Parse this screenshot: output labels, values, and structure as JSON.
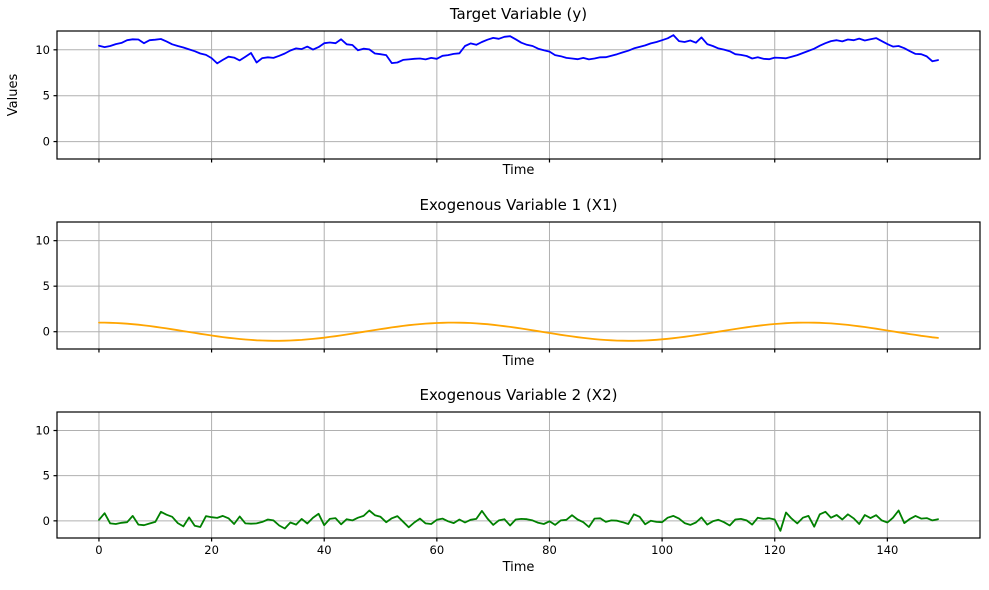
{
  "figure": {
    "background": "#ffffff",
    "grid_color": "#b0b0b0",
    "spine_color": "#000000",
    "text_color": "#000000"
  },
  "chart_data": [
    {
      "type": "line",
      "title": "Target Variable (y)",
      "xlabel": "Time",
      "ylabel": "Values",
      "color": "#0000ff",
      "grid": true,
      "legend": "none",
      "xlim": [
        -7.45,
        156.45
      ],
      "ylim": [
        -1.9,
        12.05
      ],
      "xticks": [
        0,
        20,
        40,
        60,
        80,
        100,
        120,
        140
      ],
      "show_xtick_labels": false,
      "yticks": [
        0,
        5,
        10
      ],
      "x_start": 0,
      "x_step": 1,
      "values": [
        10.45,
        10.3,
        10.42,
        10.62,
        10.75,
        11.05,
        11.15,
        11.12,
        10.72,
        11.05,
        11.1,
        11.18,
        10.92,
        10.6,
        10.42,
        10.25,
        10.05,
        9.85,
        9.6,
        9.45,
        9.1,
        8.52,
        8.9,
        9.25,
        9.15,
        8.85,
        9.25,
        9.65,
        8.62,
        9.1,
        9.18,
        9.12,
        9.35,
        9.6,
        9.92,
        10.15,
        10.08,
        10.35,
        10.02,
        10.3,
        10.72,
        10.8,
        10.72,
        11.15,
        10.6,
        10.52,
        9.95,
        10.12,
        10.05,
        9.6,
        9.52,
        9.42,
        8.55,
        8.62,
        8.9,
        8.95,
        9.02,
        9.05,
        8.95,
        9.12,
        9.02,
        9.35,
        9.42,
        9.55,
        9.62,
        10.42,
        10.7,
        10.55,
        10.85,
        11.1,
        11.3,
        11.2,
        11.42,
        11.48,
        11.15,
        10.78,
        10.55,
        10.42,
        10.12,
        9.95,
        9.8,
        9.42,
        9.3,
        9.12,
        9.05,
        8.98,
        9.12,
        8.95,
        9.05,
        9.18,
        9.2,
        9.35,
        9.52,
        9.72,
        9.9,
        10.15,
        10.32,
        10.48,
        10.7,
        10.85,
        11.05,
        11.25,
        11.6,
        10.95,
        10.85,
        11.02,
        10.78,
        11.35,
        10.62,
        10.42,
        10.15,
        10.02,
        9.85,
        9.52,
        9.45,
        9.32,
        9.05,
        9.18,
        9.02,
        8.98,
        9.15,
        9.12,
        9.08,
        9.25,
        9.42,
        9.65,
        9.88,
        10.12,
        10.45,
        10.72,
        10.95,
        11.05,
        10.92,
        11.12,
        11.05,
        11.22,
        11.02,
        11.15,
        11.28,
        10.95,
        10.62,
        10.35,
        10.42,
        10.18,
        9.85,
        9.55,
        9.52,
        9.28,
        8.75,
        8.88
      ]
    },
    {
      "type": "line",
      "title": "Exogenous Variable 1 (X1)",
      "xlabel": "Time",
      "ylabel": "",
      "color": "#ffa500",
      "grid": true,
      "legend": "none",
      "xlim": [
        -7.45,
        156.45
      ],
      "ylim": [
        -1.9,
        12.05
      ],
      "xticks": [
        0,
        20,
        40,
        60,
        80,
        100,
        120,
        140
      ],
      "show_xtick_labels": false,
      "yticks": [
        0,
        5,
        10
      ],
      "x_start": 0,
      "x_step": 1,
      "values": [
        1.0,
        0.995,
        0.98,
        0.955,
        0.921,
        0.878,
        0.825,
        0.765,
        0.697,
        0.622,
        0.54,
        0.454,
        0.362,
        0.267,
        0.17,
        0.071,
        -0.029,
        -0.128,
        -0.227,
        -0.323,
        -0.416,
        -0.505,
        -0.589,
        -0.666,
        -0.737,
        -0.801,
        -0.857,
        -0.904,
        -0.942,
        -0.971,
        -0.99,
        -0.999,
        -0.998,
        -0.987,
        -0.967,
        -0.936,
        -0.896,
        -0.848,
        -0.791,
        -0.726,
        -0.654,
        -0.575,
        -0.49,
        -0.401,
        -0.307,
        -0.211,
        -0.112,
        -0.012,
        0.087,
        0.187,
        0.284,
        0.378,
        0.469,
        0.554,
        0.635,
        0.709,
        0.776,
        0.835,
        0.886,
        0.927,
        0.96,
        0.983,
        0.997,
        1.0,
        0.993,
        0.977,
        0.951,
        0.916,
        0.872,
        0.82,
        0.754,
        0.684,
        0.608,
        0.527,
        0.441,
        0.347,
        0.251,
        0.153,
        0.054,
        -0.046,
        -0.146,
        -0.244,
        -0.339,
        -0.431,
        -0.519,
        -0.602,
        -0.679,
        -0.749,
        -0.811,
        -0.866,
        -0.911,
        -0.948,
        -0.975,
        -0.992,
        -1.0,
        -0.997,
        -0.985,
        -0.963,
        -0.931,
        -0.889,
        -0.839,
        -0.781,
        -0.714,
        -0.641,
        -0.561,
        -0.476,
        -0.385,
        -0.291,
        -0.194,
        -0.096,
        0.004,
        0.104,
        0.203,
        0.3,
        0.394,
        0.484,
        0.568,
        0.648,
        0.721,
        0.786,
        0.844,
        0.893,
        0.934,
        0.965,
        0.986,
        0.998,
        0.999,
        0.991,
        0.973,
        0.945,
        0.908,
        0.861,
        0.806,
        0.743,
        0.672,
        0.595,
        0.512,
        0.423,
        0.331,
        0.234,
        0.137,
        0.037,
        -0.063,
        -0.162,
        -0.26,
        -0.355,
        -0.446,
        -0.532,
        -0.612,
        -0.686
      ]
    },
    {
      "type": "line",
      "title": "Exogenous Variable 2 (X2)",
      "xlabel": "Time",
      "ylabel": "",
      "color": "#008000",
      "grid": true,
      "legend": "none",
      "xlim": [
        -7.45,
        156.45
      ],
      "ylim": [
        -1.9,
        12.05
      ],
      "xticks": [
        0,
        20,
        40,
        60,
        80,
        100,
        120,
        140
      ],
      "show_xtick_labels": true,
      "yticks": [
        0,
        5,
        10
      ],
      "x_start": 0,
      "x_step": 1,
      "values": [
        0.12,
        0.85,
        -0.28,
        -0.35,
        -0.22,
        -0.15,
        0.55,
        -0.42,
        -0.48,
        -0.3,
        -0.12,
        1.0,
        0.68,
        0.45,
        -0.25,
        -0.62,
        0.38,
        -0.55,
        -0.68,
        0.52,
        0.4,
        0.32,
        0.55,
        0.28,
        -0.35,
        0.48,
        -0.28,
        -0.32,
        -0.28,
        -0.12,
        0.15,
        0.05,
        -0.52,
        -0.85,
        -0.18,
        -0.42,
        0.22,
        -0.3,
        0.35,
        0.78,
        -0.48,
        0.22,
        0.3,
        -0.38,
        0.18,
        0.05,
        0.35,
        0.55,
        1.15,
        0.62,
        0.45,
        -0.15,
        0.28,
        0.52,
        -0.1,
        -0.72,
        -0.18,
        0.25,
        -0.28,
        -0.35,
        0.12,
        0.25,
        -0.05,
        -0.25,
        0.15,
        -0.18,
        0.12,
        0.22,
        1.1,
        0.25,
        -0.45,
        0.05,
        0.18,
        -0.52,
        0.15,
        0.22,
        0.18,
        0.05,
        -0.22,
        -0.35,
        -0.05,
        -0.45,
        0.05,
        0.12,
        0.62,
        0.15,
        -0.15,
        -0.68,
        0.25,
        0.28,
        -0.12,
        0.05,
        0.02,
        -0.15,
        -0.35,
        0.72,
        0.45,
        -0.38,
        0.02,
        -0.12,
        -0.15,
        0.35,
        0.55,
        0.25,
        -0.25,
        -0.45,
        -0.18,
        0.38,
        -0.42,
        -0.05,
        0.12,
        -0.15,
        -0.52,
        0.15,
        0.22,
        0.05,
        -0.42,
        0.35,
        0.22,
        0.28,
        0.15,
        -1.1,
        0.92,
        0.25,
        -0.28,
        0.35,
        0.55,
        -0.65,
        0.72,
        1.0,
        0.35,
        0.65,
        0.15,
        0.72,
        0.28,
        -0.35,
        0.65,
        0.3,
        0.62,
        0.05,
        -0.18,
        0.35,
        1.15,
        -0.25,
        0.22,
        0.55,
        0.25,
        0.3,
        0.05,
        0.18
      ]
    }
  ]
}
